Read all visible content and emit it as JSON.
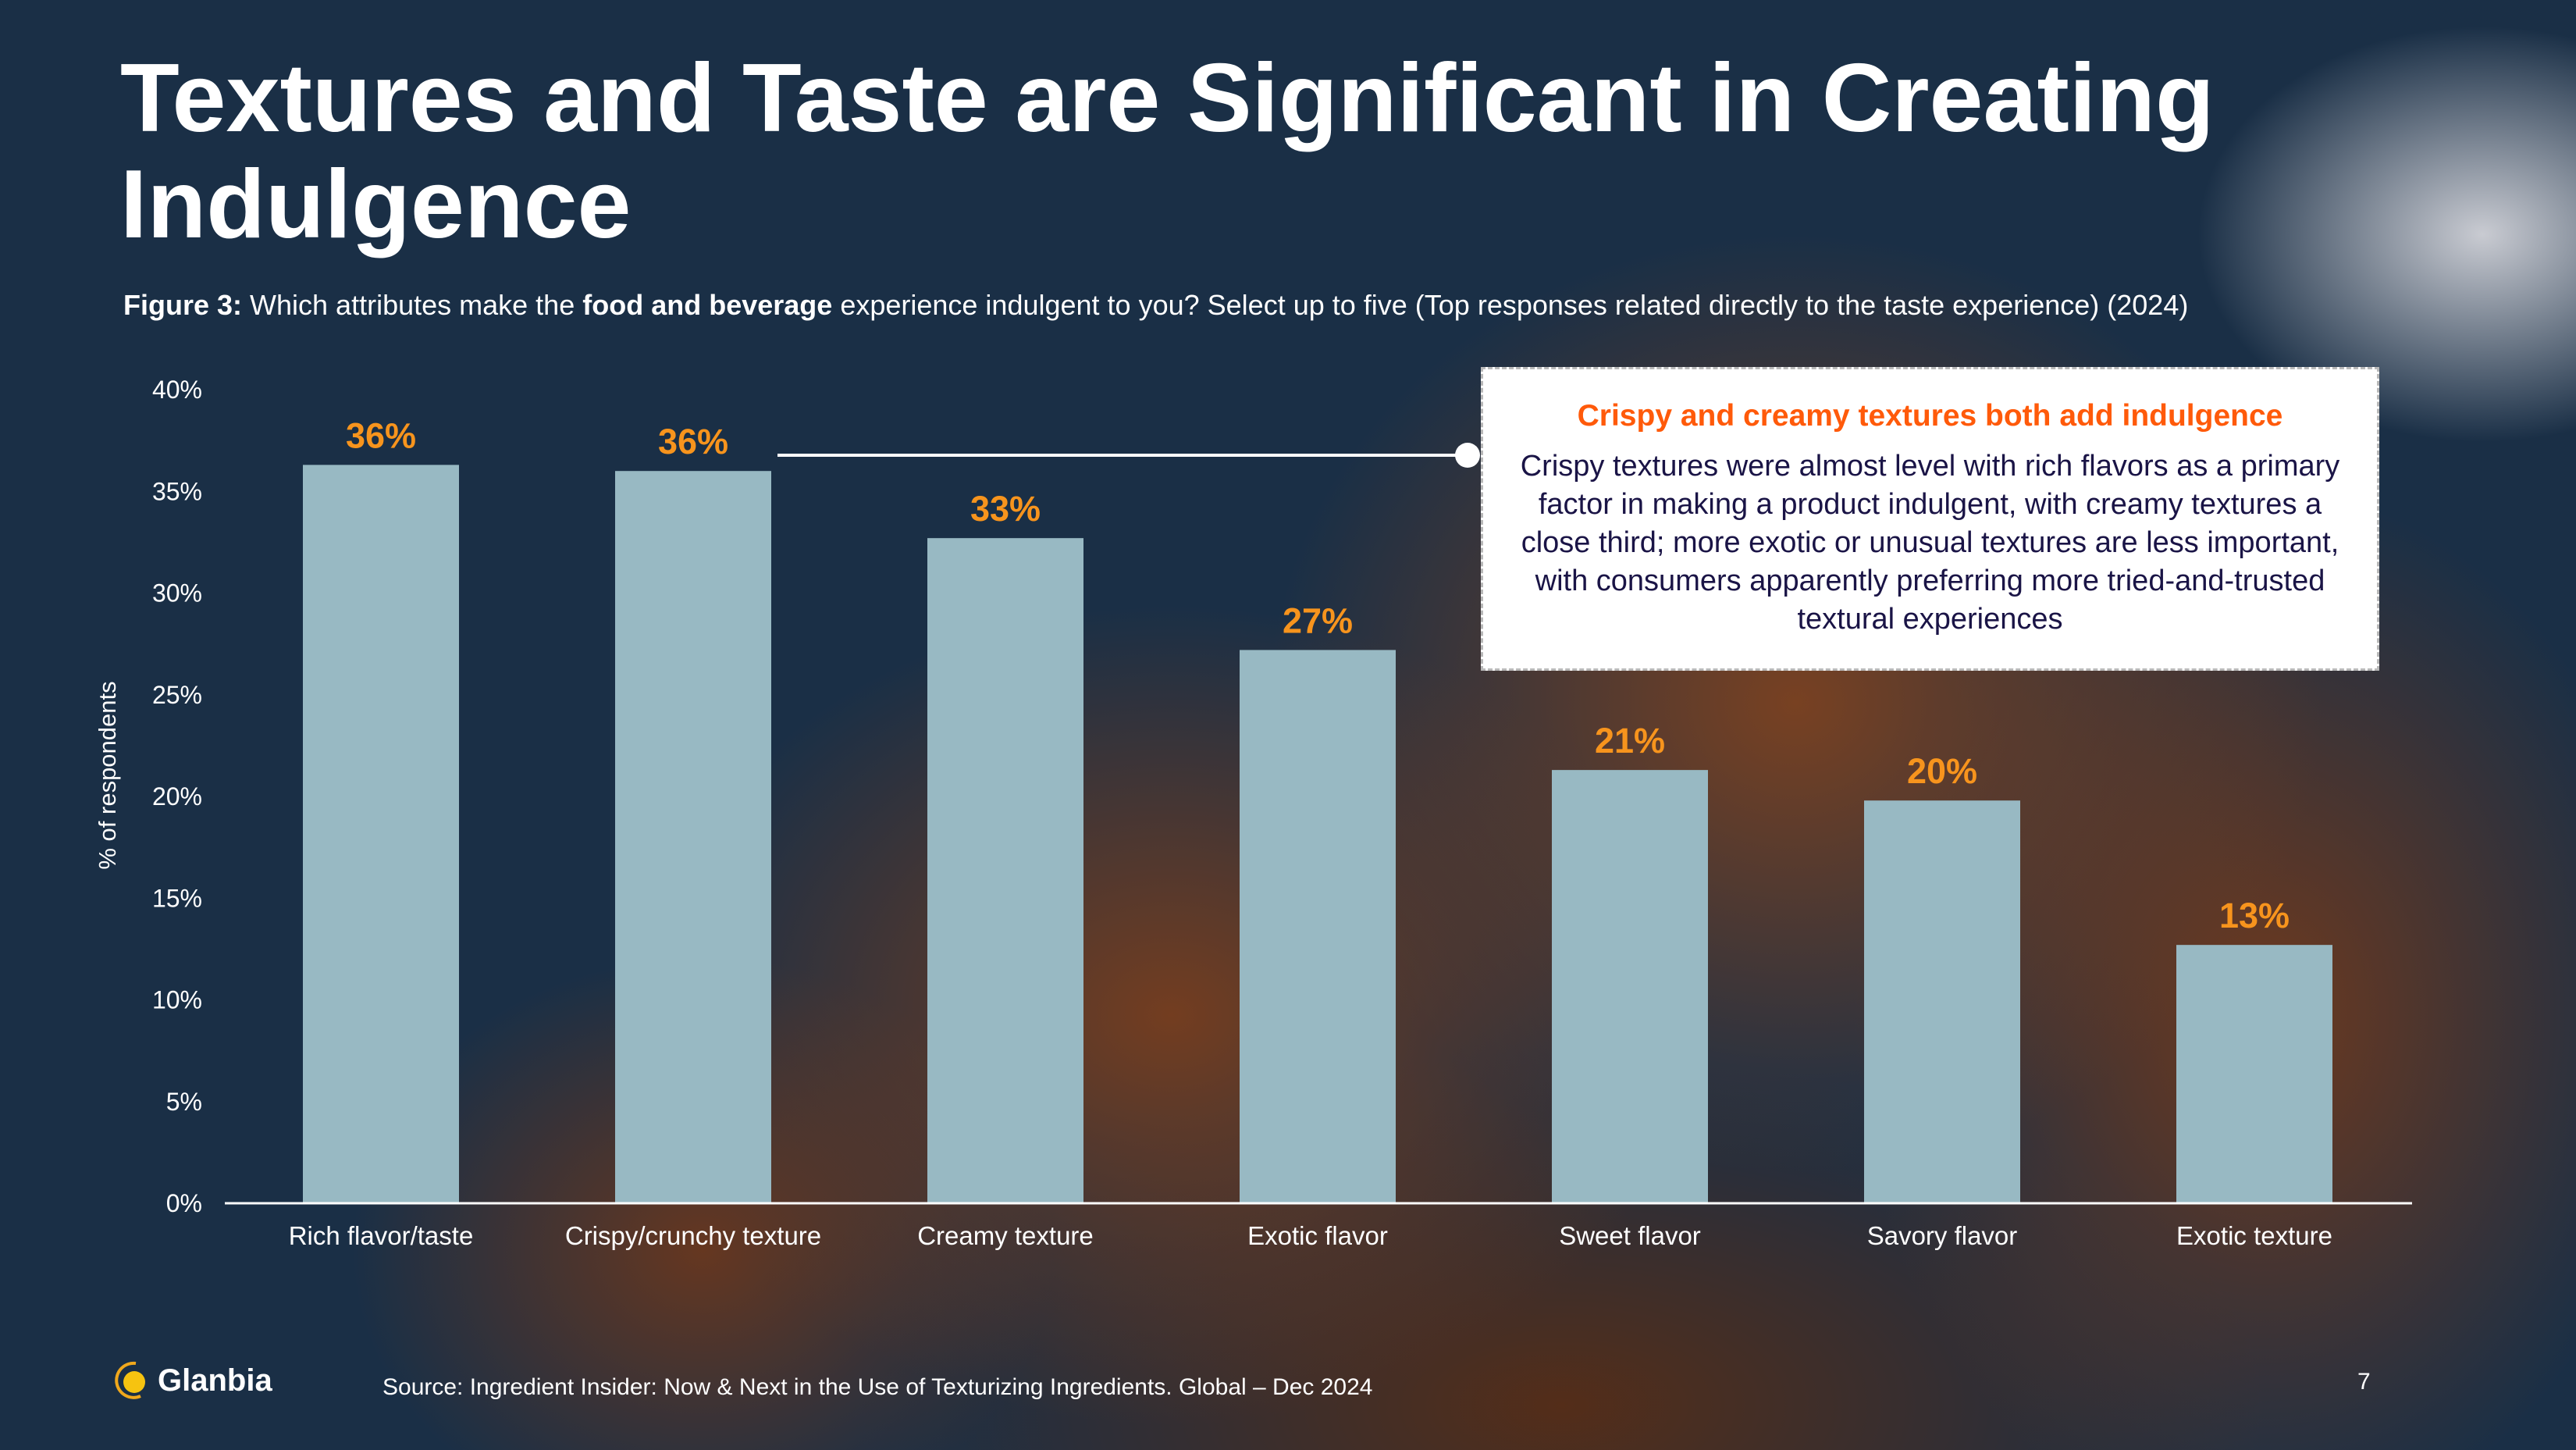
{
  "title": "Textures and Taste are Significant in Creating Indulgence",
  "subtitle": {
    "figure_label": "Figure 3:",
    "text_before": "Which attributes make the",
    "bold": "food and beverage",
    "text_after": "experience indulgent to you? Select up to five (Top responses related directly to the taste experience) (2024)"
  },
  "callout": {
    "heading": "Crispy and creamy textures both add indulgence",
    "body": "Crispy textures were almost level with rich flavors as a primary factor in making a product indulgent, with creamy textures a close third; more exotic or unusual textures are less important, with consumers apparently preferring more tried-and-trusted textural experiences"
  },
  "footer": {
    "logo": "Glanbia",
    "source": "Source: Ingredient Insider: Now &  Next in the Use of Texturizing Ingredients.  Global – Dec 2024",
    "page_number": "7"
  },
  "colors": {
    "bar": "#98b9c3",
    "data_label": "#f7941d",
    "callout_heading": "#ff5a0a",
    "background": "#1a2f46"
  },
  "chart_data": {
    "type": "bar",
    "categories": [
      "Rich flavor/taste",
      "Crispy/crunchy texture",
      "Creamy texture",
      "Exotic flavor",
      "Sweet flavor",
      "Savory flavor",
      "Exotic texture"
    ],
    "values": [
      36.3,
      36.0,
      32.7,
      27.2,
      21.3,
      19.8,
      12.7
    ],
    "data_labels": [
      "36%",
      "36%",
      "33%",
      "27%",
      "21%",
      "20%",
      "13%"
    ],
    "ylabel": "% of respondents",
    "xlabel": "",
    "ylim": [
      0,
      40
    ],
    "yticks": [
      "0%",
      "5%",
      "10%",
      "15%",
      "20%",
      "25%",
      "30%",
      "35%",
      "40%"
    ],
    "grid": false,
    "legend": "none"
  }
}
